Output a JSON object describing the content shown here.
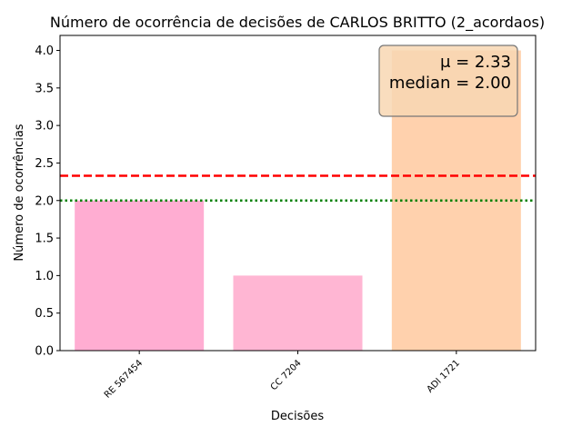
{
  "chart_data": {
    "type": "bar",
    "title": "Número de ocorrência de decisões de CARLOS BRITTO (2_acordaos)",
    "xlabel": "Decisões",
    "ylabel": "Número de ocorrências",
    "categories": [
      "RE 567454",
      "CC 7204",
      "ADI 1721"
    ],
    "values": [
      2,
      1,
      4
    ],
    "bar_colors": [
      "#ffadd2",
      "#ffb6d3",
      "#ffd1ad"
    ],
    "ylim": [
      0,
      4.2
    ],
    "yticks": [
      0.0,
      0.5,
      1.0,
      1.5,
      2.0,
      2.5,
      3.0,
      3.5,
      4.0
    ],
    "ytick_labels": [
      "0.0",
      "0.5",
      "1.0",
      "1.5",
      "2.0",
      "2.5",
      "3.0",
      "3.5",
      "4.0"
    ],
    "grid": false,
    "reference_lines": [
      {
        "label": "mean",
        "value": 2.33,
        "color": "#ff0000",
        "style": "dashed"
      },
      {
        "label": "median",
        "value": 2.0,
        "color": "#008000",
        "style": "dotted"
      }
    ],
    "annotation": {
      "mean_text": "μ = 2.33",
      "median_text": "median = 2.00",
      "placement": "top-right",
      "background": "#f8d7b3"
    }
  }
}
